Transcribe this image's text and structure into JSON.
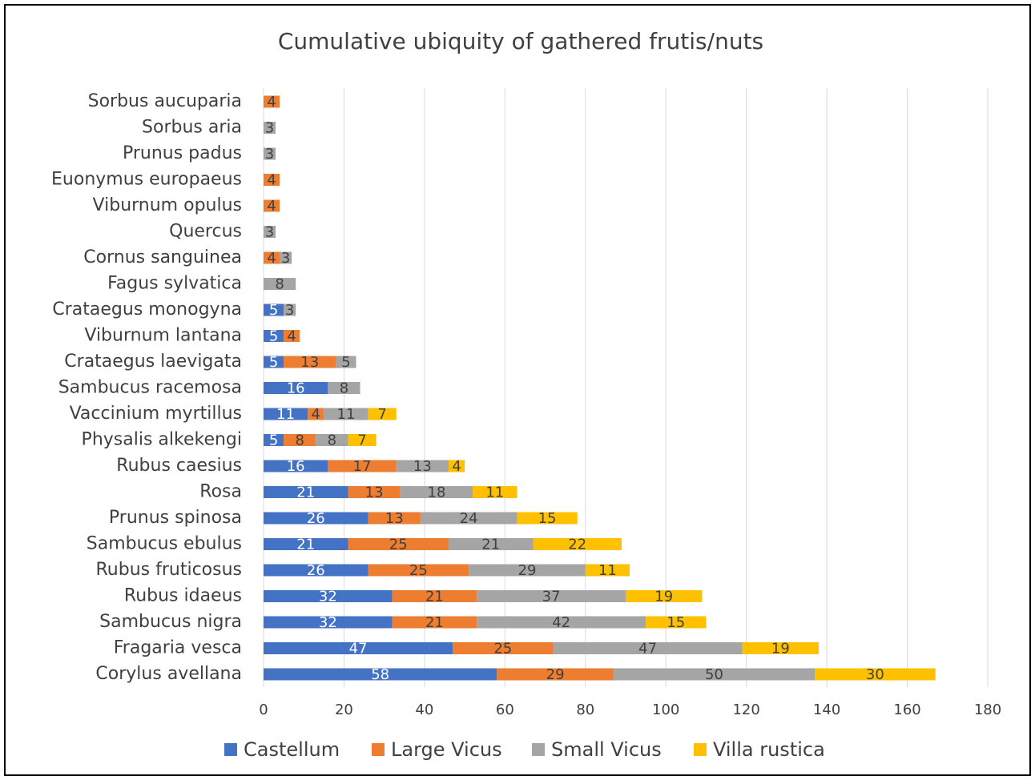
{
  "chart_data": {
    "type": "bar",
    "orientation": "horizontal",
    "stacked": true,
    "title": "Cumulative ubiquity of gathered frutis/nuts",
    "categories": [
      "Sorbus aucuparia",
      "Sorbus aria",
      "Prunus padus",
      "Euonymus europaeus",
      "Viburnum opulus",
      "Quercus",
      "Cornus sanguinea",
      "Fagus sylvatica",
      "Crataegus monogyna",
      "Viburnum lantana",
      "Crataegus laevigata",
      "Sambucus racemosa",
      "Vaccinium myrtillus",
      "Physalis alkekengi",
      "Rubus caesius",
      "Rosa",
      "Prunus spinosa",
      "Sambucus ebulus",
      "Rubus fruticosus",
      "Rubus idaeus",
      "Sambucus nigra",
      "Fragaria vesca",
      "Corylus avellana"
    ],
    "series": [
      {
        "name": "Castellum",
        "color": "#4472c4",
        "values": [
          null,
          null,
          null,
          null,
          null,
          null,
          null,
          null,
          5,
          5,
          5,
          16,
          11,
          5,
          16,
          21,
          26,
          21,
          26,
          32,
          32,
          47,
          58
        ]
      },
      {
        "name": "Large Vicus",
        "color": "#ed7d31",
        "values": [
          4,
          null,
          null,
          4,
          4,
          null,
          4,
          null,
          null,
          4,
          13,
          null,
          4,
          8,
          17,
          13,
          13,
          25,
          25,
          21,
          21,
          25,
          29
        ]
      },
      {
        "name": "Small Vicus",
        "color": "#a5a5a5",
        "values": [
          null,
          3,
          3,
          null,
          null,
          3,
          3,
          8,
          3,
          null,
          5,
          8,
          11,
          8,
          13,
          18,
          24,
          21,
          29,
          37,
          42,
          47,
          50
        ]
      },
      {
        "name": "Villa rustica",
        "color": "#ffc000",
        "values": [
          null,
          null,
          null,
          null,
          null,
          null,
          null,
          null,
          null,
          null,
          null,
          null,
          7,
          7,
          4,
          11,
          15,
          22,
          11,
          19,
          15,
          19,
          30
        ]
      }
    ],
    "xlim": [
      0,
      180
    ],
    "xticks": [
      0,
      20,
      40,
      60,
      80,
      100,
      120,
      140,
      160,
      180
    ],
    "grid": true,
    "legend": "bottom"
  }
}
